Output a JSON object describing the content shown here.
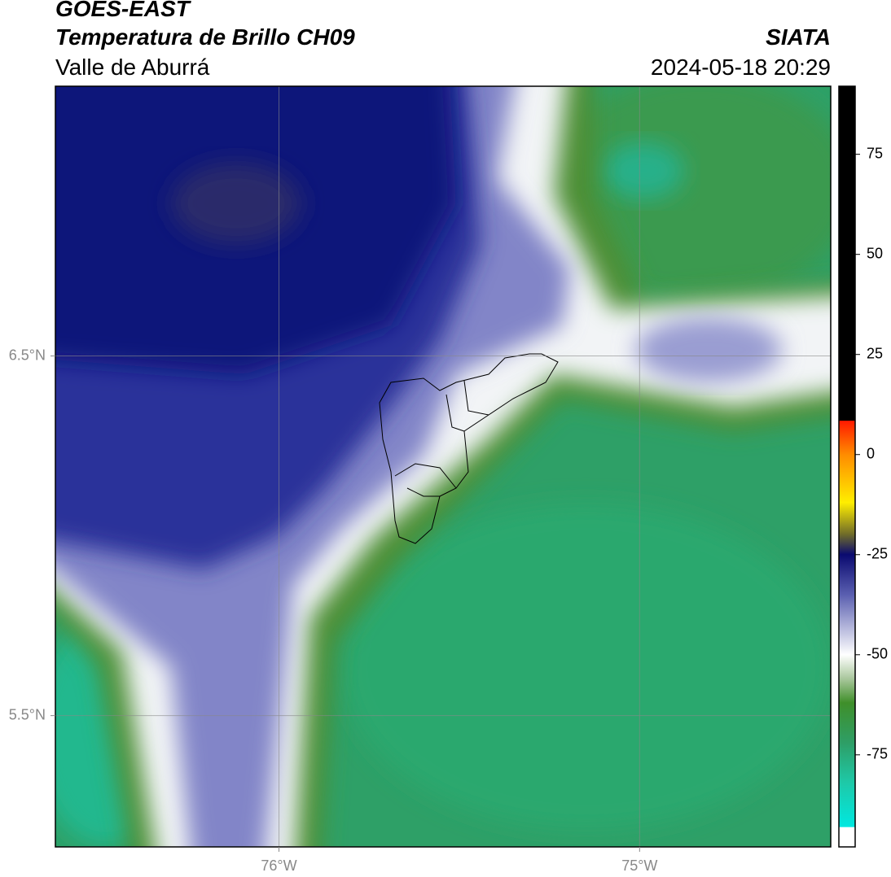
{
  "header": {
    "title": "GOES-EAST",
    "subtitle": "Temperatura de Brillo CH09",
    "region": "Valle de Aburrá",
    "source": "SIATA",
    "datetime": "2024-05-18 20:29"
  },
  "map": {
    "lon_range": [
      -76.62,
      -74.47
    ],
    "lat_range": [
      5.135,
      7.25
    ],
    "lat_ticks": [
      {
        "value": 6.5,
        "label": "6.5°N"
      },
      {
        "value": 5.5,
        "label": "5.5°N"
      }
    ],
    "lon_ticks": [
      {
        "value": -76,
        "label": "76°W"
      },
      {
        "value": -75,
        "label": "75°W"
      }
    ],
    "grid": true
  },
  "colorbar": {
    "range": [
      -98,
      92
    ],
    "ticks": [
      75,
      50,
      25,
      0,
      -25,
      -50,
      -75
    ],
    "stops": [
      {
        "value": 92,
        "color": "#000000"
      },
      {
        "value": 8.5,
        "color": "#000000"
      },
      {
        "value": 8.4,
        "color": "#ff1a00"
      },
      {
        "value": 0,
        "color": "#ff8c00"
      },
      {
        "value": -12,
        "color": "#ffee00"
      },
      {
        "value": -20,
        "color": "#6e6a2a"
      },
      {
        "value": -25,
        "color": "#0a0a70"
      },
      {
        "value": -35,
        "color": "#5a5fb0"
      },
      {
        "value": -50,
        "color": "#ffffff"
      },
      {
        "value": -56,
        "color": "#a9c79c"
      },
      {
        "value": -62,
        "color": "#3f8f2a"
      },
      {
        "value": -72,
        "color": "#2e9e66"
      },
      {
        "value": -82,
        "color": "#1ec9a8"
      },
      {
        "value": -93,
        "color": "#00e8e0"
      },
      {
        "value": -93.1,
        "color": "#ffffff"
      },
      {
        "value": -98,
        "color": "#ffffff"
      }
    ]
  }
}
